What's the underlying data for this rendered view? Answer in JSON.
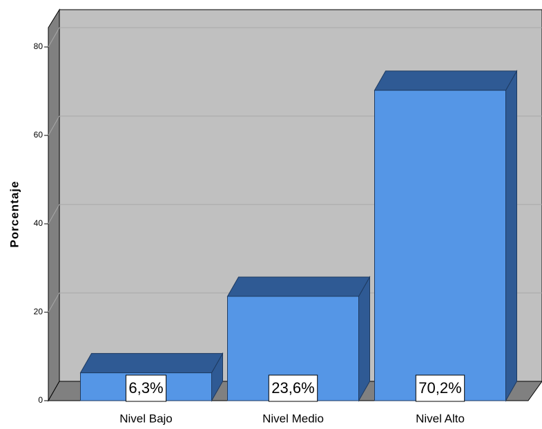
{
  "chart_data": {
    "type": "bar3d",
    "y_label": "Porcentaje",
    "categories": [
      "Nivel Bajo",
      "Nivel Medio",
      "Nivel Alto"
    ],
    "values": [
      6.3,
      23.6,
      70.2
    ],
    "value_labels": [
      "6,3%",
      "23,6%",
      "70,2%"
    ],
    "color": "#5596e6",
    "ylim": [
      0,
      84
    ],
    "yticks": [
      0,
      20,
      40,
      60,
      80
    ],
    "grid": true
  }
}
